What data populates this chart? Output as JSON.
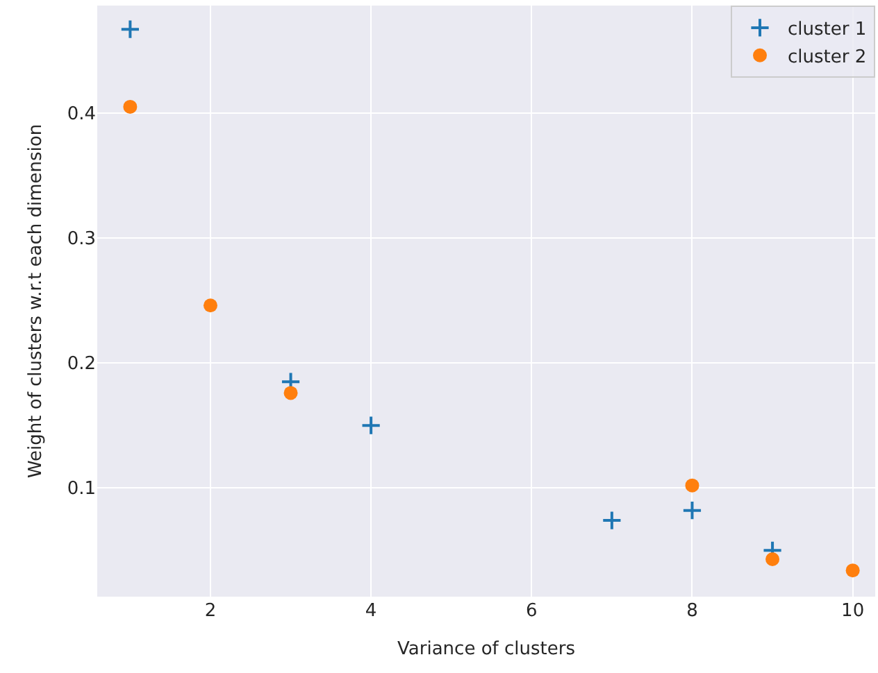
{
  "chart_data": {
    "type": "scatter",
    "xlabel": "Variance of clusters",
    "ylabel": "Weight of clusters w.r.t each dimension",
    "xlim": [
      0.59,
      10.28
    ],
    "xticks": [
      2,
      4,
      6,
      8,
      10
    ],
    "ylim": [
      0.013,
      0.486
    ],
    "yticks": [
      0.1,
      0.2,
      0.3,
      0.4
    ],
    "grid": true,
    "legend": "top right",
    "series": [
      {
        "name": "cluster 1",
        "color": "#1f77b4",
        "marker": "cross",
        "x": [
          1,
          3,
          4,
          7,
          8,
          9
        ],
        "values": [
          0.467,
          0.185,
          0.15,
          0.074,
          0.082,
          0.05
        ]
      },
      {
        "name": "cluster 2",
        "color": "#ff7f0e",
        "marker": "circle",
        "x": [
          1,
          2,
          3,
          8,
          9,
          10
        ],
        "values": [
          0.405,
          0.246,
          0.176,
          0.102,
          0.043,
          0.034
        ]
      }
    ]
  }
}
